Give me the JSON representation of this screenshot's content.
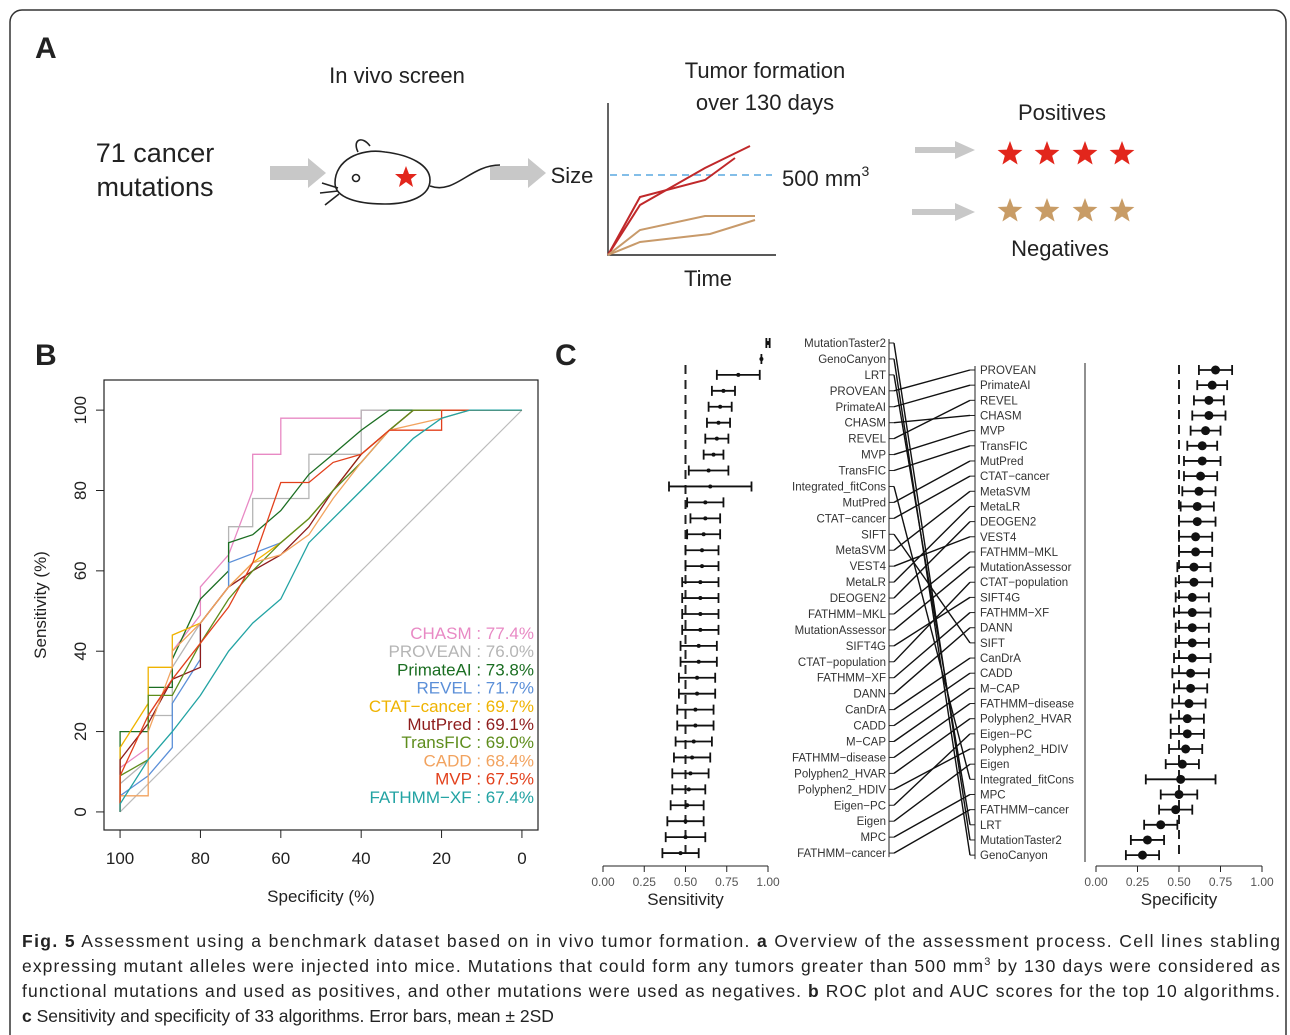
{
  "panel_a": {
    "label": "A",
    "input_lines": [
      "71 cancer",
      "mutations"
    ],
    "screen": "In vivo screen",
    "plot_title_lines": [
      "Tumor formation",
      "over 130 days"
    ],
    "y_label": "Size",
    "x_label": "Time",
    "threshold": "500 mm",
    "threshold_sup": "3",
    "positives": "Positives",
    "negatives": "Negatives"
  },
  "chart_data": [
    {
      "type": "roc",
      "panel_label": "B",
      "x_label": "Specificity (%)",
      "y_label": "Sensitivity (%)",
      "xlim": [
        104,
        -4
      ],
      "ylim": [
        -4.5,
        107.5
      ],
      "xticks": [
        100,
        80,
        60,
        40,
        20,
        0
      ],
      "yticks": [
        0,
        20,
        40,
        60,
        80,
        100
      ],
      "diagonal_color": "#bbbbbb",
      "series": [
        {
          "name": "CHASM : 77.4%",
          "color": "#e889c4",
          "x": [
            100,
            100,
            93,
            93,
            87,
            87,
            80,
            80,
            73,
            67,
            67,
            60,
            60,
            40,
            40,
            0
          ],
          "y": [
            0,
            11,
            16,
            24,
            33,
            40,
            49,
            56,
            64,
            80,
            89,
            89,
            98,
            98,
            100,
            100
          ]
        },
        {
          "name": "PROVEAN : 76.0%",
          "color": "#b5b5b5",
          "x": [
            100,
            100,
            93,
            93,
            87,
            87,
            80,
            73,
            73,
            67,
            67,
            53,
            53,
            40,
            40,
            0
          ],
          "y": [
            0,
            7,
            13,
            24,
            24,
            36,
            47,
            56,
            71,
            71,
            78,
            78,
            89,
            89,
            100,
            100
          ]
        },
        {
          "name": "PrimateAI : 73.8%",
          "color": "#1b6e22",
          "x": [
            100,
            100,
            93,
            93,
            87,
            87,
            80,
            73,
            73,
            67,
            60,
            53,
            47,
            40,
            33,
            0
          ],
          "y": [
            0,
            20,
            20,
            31,
            31,
            38,
            53,
            60,
            67,
            69,
            75,
            84,
            89,
            95,
            100,
            100
          ]
        },
        {
          "name": "REVEL : 71.7%",
          "color": "#5b8fd8",
          "x": [
            100,
            100,
            93,
            87,
            87,
            80,
            80,
            73,
            73,
            60,
            53,
            47,
            40,
            33,
            27,
            0
          ],
          "y": [
            0,
            4,
            9,
            16,
            27,
            38,
            47,
            56,
            62,
            67,
            73,
            80,
            87,
            95,
            100,
            100
          ]
        },
        {
          "name": "CTAT−cancer : 69.7%",
          "color": "#efb300",
          "x": [
            100,
            100,
            93,
            93,
            87,
            87,
            80,
            73,
            67,
            60,
            53,
            47,
            40,
            33,
            27,
            0
          ],
          "y": [
            0,
            16,
            27,
            36,
            36,
            44,
            47,
            56,
            62,
            67,
            73,
            80,
            89,
            95,
            100,
            100
          ]
        },
        {
          "name": "MutPred : 69.1%",
          "color": "#8e1c1c",
          "x": [
            100,
            100,
            93,
            87,
            80,
            80,
            73,
            67,
            60,
            53,
            47,
            40,
            33,
            27,
            0
          ],
          "y": [
            0,
            13,
            22,
            33,
            36,
            47,
            56,
            60,
            64,
            71,
            80,
            89,
            95,
            100,
            100
          ]
        },
        {
          "name": "TransFIC : 69.0%",
          "color": "#5e8d1c",
          "x": [
            100,
            100,
            93,
            93,
            87,
            80,
            73,
            67,
            60,
            53,
            47,
            40,
            33,
            27,
            0
          ],
          "y": [
            0,
            9,
            13,
            29,
            29,
            42,
            53,
            60,
            67,
            73,
            80,
            87,
            95,
            100,
            100
          ]
        },
        {
          "name": "CADD : 68.4%",
          "color": "#f2a35f",
          "x": [
            100,
            100,
            93,
            93,
            87,
            87,
            80,
            73,
            67,
            60,
            53,
            47,
            40,
            33,
            20,
            13,
            0
          ],
          "y": [
            0,
            4,
            4,
            20,
            36,
            40,
            47,
            56,
            62,
            64,
            69,
            78,
            87,
            95,
            98,
            100,
            100
          ]
        },
        {
          "name": "MVP : 67.5%",
          "color": "#e2401c",
          "x": [
            100,
            100,
            93,
            87,
            80,
            73,
            67,
            60,
            53,
            47,
            40,
            33,
            20,
            20,
            0
          ],
          "y": [
            0,
            9,
            24,
            33,
            42,
            51,
            62,
            82,
            82,
            87,
            89,
            95,
            95,
            100,
            100
          ]
        },
        {
          "name": "FATHMM−XF : 67.4%",
          "color": "#22a3a3",
          "x": [
            100,
            100,
            93,
            87,
            80,
            73,
            67,
            60,
            53,
            47,
            40,
            33,
            27,
            20,
            13,
            0
          ],
          "y": [
            0,
            2,
            13,
            20,
            29,
            40,
            47,
            53,
            67,
            73,
            80,
            87,
            93,
            98,
            100,
            100
          ]
        }
      ]
    },
    {
      "type": "dotplot",
      "panel_label": "C",
      "x_label": "Sensitivity",
      "xlim": [
        0,
        1
      ],
      "xticks": [
        {
          "value": 0,
          "label": "0.00"
        },
        {
          "value": 0.25,
          "label": "0.25"
        },
        {
          "value": 0.5,
          "label": "0.50"
        },
        {
          "value": 0.75,
          "label": "0.75"
        },
        {
          "value": 1,
          "label": "1.00"
        }
      ],
      "reference": 0.5,
      "side": "left",
      "categories": [
        "MutationTaster2",
        "GenoCanyon",
        "LRT",
        "PROVEAN",
        "PrimateAI",
        "CHASM",
        "REVEL",
        "MVP",
        "TransFIC",
        "Integrated_fitCons",
        "MutPred",
        "CTAT−cancer",
        "SIFT",
        "MetaSVM",
        "VEST4",
        "MetaLR",
        "DEOGEN2",
        "FATHMM−MKL",
        "MutationAssessor",
        "SIFT4G",
        "CTAT−population",
        "FATHMM−XF",
        "DANN",
        "CanDrA",
        "CADD",
        "M−CAP",
        "FATHMM−disease",
        "Polyphen2_HVAR",
        "Polyphen2_HDIV",
        "Eigen−PC",
        "Eigen",
        "MPC",
        "FATHMM−cancer"
      ],
      "values": [
        1.0,
        0.96,
        0.82,
        0.73,
        0.71,
        0.7,
        0.69,
        0.67,
        0.64,
        0.65,
        0.62,
        0.62,
        0.61,
        0.6,
        0.6,
        0.59,
        0.59,
        0.59,
        0.59,
        0.58,
        0.58,
        0.57,
        0.57,
        0.56,
        0.56,
        0.55,
        0.54,
        0.53,
        0.52,
        0.51,
        0.5,
        0.5,
        0.47
      ],
      "errors": [
        0.01,
        0,
        0.13,
        0.07,
        0.07,
        0.07,
        0.07,
        0.06,
        0.12,
        0.25,
        0.11,
        0.09,
        0.1,
        0.1,
        0.1,
        0.11,
        0.11,
        0.11,
        0.11,
        0.11,
        0.11,
        0.11,
        0.11,
        0.11,
        0.11,
        0.11,
        0.11,
        0.11,
        0.1,
        0.1,
        0.11,
        0.12,
        0.11
      ]
    },
    {
      "type": "dotplot",
      "x_label": "Specificity",
      "xlim": [
        0,
        1
      ],
      "xticks": [
        {
          "value": 0,
          "label": "0.00"
        },
        {
          "value": 0.25,
          "label": "0.25"
        },
        {
          "value": 0.5,
          "label": "0.50"
        },
        {
          "value": 0.75,
          "label": "0.75"
        },
        {
          "value": 1,
          "label": "1.00"
        }
      ],
      "reference": 0.5,
      "side": "right",
      "categories": [
        "PROVEAN",
        "PrimateAI",
        "REVEL",
        "CHASM",
        "MVP",
        "TransFIC",
        "MutPred",
        "CTAT−cancer",
        "MetaSVM",
        "MetaLR",
        "DEOGEN2",
        "VEST4",
        "FATHMM−MKL",
        "MutationAssessor",
        "CTAT−population",
        "SIFT4G",
        "FATHMM−XF",
        "DANN",
        "SIFT",
        "CanDrA",
        "CADD",
        "M−CAP",
        "FATHMM−disease",
        "Polyphen2_HVAR",
        "Eigen−PC",
        "Polyphen2_HDIV",
        "Eigen",
        "Integrated_fitCons",
        "MPC",
        "FATHMM−cancer",
        "LRT",
        "MutationTaster2",
        "GenoCanyon"
      ],
      "values": [
        0.72,
        0.7,
        0.68,
        0.68,
        0.66,
        0.64,
        0.64,
        0.63,
        0.62,
        0.61,
        0.61,
        0.6,
        0.6,
        0.59,
        0.59,
        0.58,
        0.58,
        0.58,
        0.58,
        0.58,
        0.57,
        0.57,
        0.56,
        0.55,
        0.55,
        0.54,
        0.52,
        0.51,
        0.5,
        0.48,
        0.39,
        0.31,
        0.28
      ],
      "errors": [
        0.1,
        0.09,
        0.09,
        0.1,
        0.09,
        0.09,
        0.11,
        0.1,
        0.1,
        0.1,
        0.11,
        0.1,
        0.1,
        0.1,
        0.11,
        0.1,
        0.11,
        0.1,
        0.1,
        0.11,
        0.11,
        0.1,
        0.1,
        0.1,
        0.1,
        0.1,
        0.1,
        0.21,
        0.11,
        0.1,
        0.1,
        0.1,
        0.1
      ]
    }
  ],
  "caption": {
    "lines": [
      [
        {
          "text": "Fig. 5",
          "bold": true
        },
        {
          "text": " Assessment using a benchmark dataset based on in vivo tumor formation. "
        },
        {
          "text": "a",
          "bold": true
        },
        {
          "text": " Overview of the assessment process. Cell lines stabling"
        }
      ],
      [
        {
          "text": "expressing mutant alleles were injected into mice. Mutations that could form any tumors greater than 500 mm"
        },
        {
          "text": "3",
          "sup": true
        },
        {
          "text": " by 130 days were considered as"
        }
      ],
      [
        {
          "text": "functional mutations and used as positives, and other mutations were used as negatives. "
        },
        {
          "text": "b",
          "bold": true
        },
        {
          "text": " ROC plot and AUC scores for the top 10 algorithms."
        }
      ],
      [
        {
          "text": "c",
          "bold": true
        },
        {
          "text": " Sensitivity and specificity of 33 algorithms. Error bars, mean ± 2SD"
        }
      ]
    ]
  }
}
